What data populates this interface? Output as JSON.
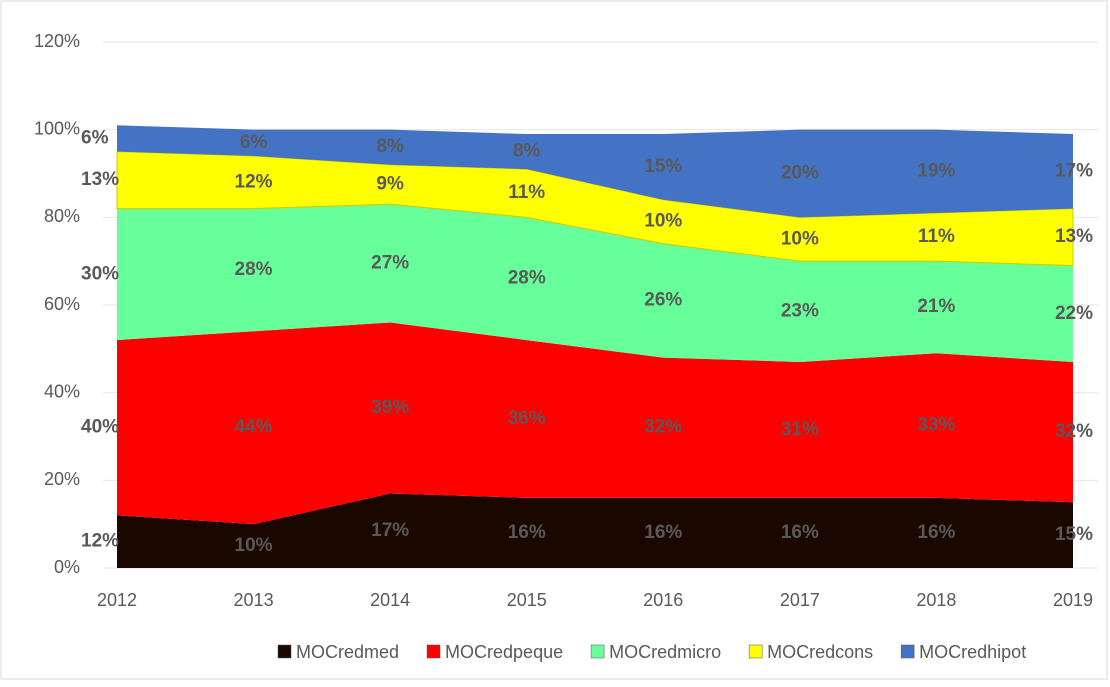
{
  "chart_data": {
    "type": "stacked-area",
    "categories": [
      "2012",
      "2013",
      "2014",
      "2015",
      "2016",
      "2017",
      "2018",
      "2019"
    ],
    "ylim": [
      0,
      120
    ],
    "yticks": [
      {
        "value": 0,
        "label": "0%"
      },
      {
        "value": 20,
        "label": "20%"
      },
      {
        "value": 40,
        "label": "40%"
      },
      {
        "value": 60,
        "label": "60%"
      },
      {
        "value": 80,
        "label": "80%"
      },
      {
        "value": 100,
        "label": "100%"
      },
      {
        "value": 120,
        "label": "120%"
      }
    ],
    "grid": true,
    "legend": "bottom",
    "series": [
      {
        "name": "MOCredmed",
        "color": "#1a0800",
        "label_color": "#ff0000",
        "values": [
          12,
          10,
          17,
          16,
          16,
          16,
          16,
          15
        ],
        "value_labels": [
          "12%",
          "10%",
          "17%",
          "16%",
          "16%",
          "16%",
          "16%",
          "15%"
        ]
      },
      {
        "name": "MOCredpeque",
        "color": "#ff0000",
        "label_color": "#595959",
        "values": [
          40,
          44,
          39,
          36,
          32,
          31,
          33,
          32
        ],
        "value_labels": [
          "40%",
          "44%",
          "39%",
          "36%",
          "32%",
          "31%",
          "33%",
          "32%"
        ]
      },
      {
        "name": "MOCredmicro",
        "color": "#66ff99",
        "label_color": "#7f6000",
        "values": [
          30,
          28,
          27,
          28,
          26,
          23,
          21,
          22
        ],
        "value_labels": [
          "30%",
          "28%",
          "27%",
          "28%",
          "26%",
          "23%",
          "21%",
          "22%"
        ]
      },
      {
        "name": "MOCredcons",
        "color": "#ffff00",
        "label_color": "#1f3864",
        "values": [
          13,
          12,
          9,
          11,
          10,
          10,
          11,
          13
        ],
        "value_labels": [
          "13%",
          "12%",
          "9%",
          "11%",
          "10%",
          "10%",
          "11%",
          "13%"
        ]
      },
      {
        "name": "MOCredhipot",
        "color": "#4472c4",
        "label_color": "#375623",
        "values": [
          6,
          6,
          8,
          8,
          15,
          20,
          19,
          17
        ],
        "value_labels": [
          "6%",
          "6%",
          "8%",
          "8%",
          "15%",
          "20%",
          "19%",
          "17%"
        ]
      }
    ]
  }
}
